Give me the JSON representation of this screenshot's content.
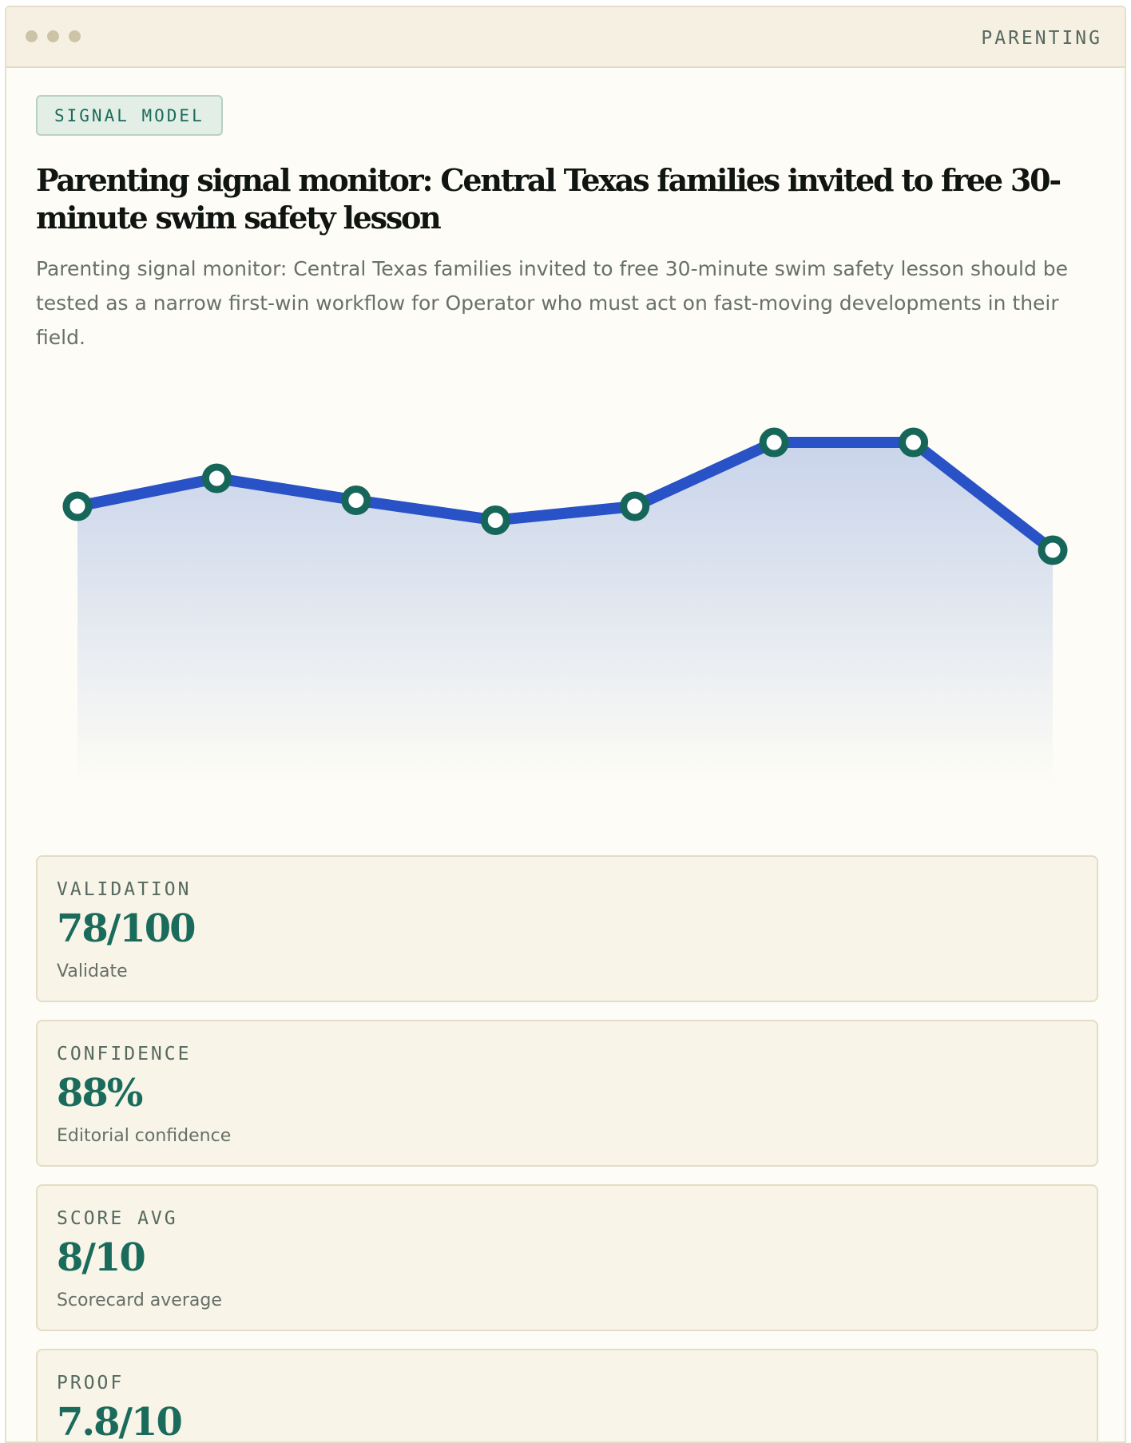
{
  "window": {
    "section": "PARENTING"
  },
  "badge": "SIGNAL MODEL",
  "headline": "Parenting signal monitor: Central Texas families invited to free 30-minute swim safety lesson",
  "lede": "Parenting signal monitor: Central Texas families invited to free 30-minute swim safety lesson should be tested as a narrow first-win workflow for Operator who must act on fast-moving developments in their field.",
  "colors": {
    "line": "#2952c7",
    "marker_stroke": "#16675a",
    "marker_fill": "#ffffff",
    "accent": "#1a6b5b",
    "area_top": "#c6d2ea"
  },
  "chart_data": {
    "type": "line",
    "title": "",
    "xlabel": "",
    "ylabel": "",
    "grid": false,
    "legend": "none",
    "ylim": [
      0,
      100
    ],
    "x": [
      1,
      2,
      3,
      4,
      5,
      6,
      7,
      8
    ],
    "series": [
      {
        "values": [
          69,
          76,
          70.5,
          65.5,
          69,
          85,
          85,
          58
        ]
      }
    ]
  },
  "metrics": [
    {
      "label": "VALIDATION",
      "value": "78/100",
      "caption": "Validate"
    },
    {
      "label": "CONFIDENCE",
      "value": "88%",
      "caption": "Editorial confidence"
    },
    {
      "label": "SCORE AVG",
      "value": "8/10",
      "caption": "Scorecard average"
    },
    {
      "label": "PROOF",
      "value": "7.8/10",
      "caption": ""
    }
  ]
}
